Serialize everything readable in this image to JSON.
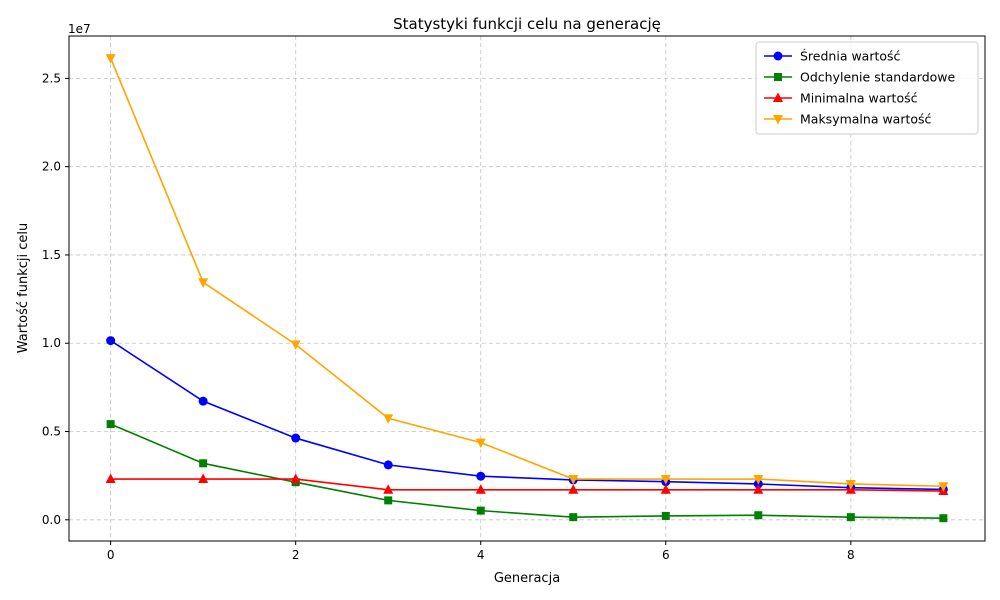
{
  "chart_data": {
    "type": "line",
    "title": "Statystyki funkcji celu na generację",
    "xlabel": "Generacja",
    "ylabel": "Wartość funkcji celu",
    "y_offset_label": "1e7",
    "x": [
      0,
      1,
      2,
      3,
      4,
      5,
      6,
      7,
      8,
      9
    ],
    "xlim": [
      -0.45,
      9.45
    ],
    "ylim": [
      -1200000,
      27400000
    ],
    "x_ticks": [
      0,
      2,
      4,
      6,
      8
    ],
    "x_tick_labels": [
      "0",
      "2",
      "4",
      "6",
      "8"
    ],
    "y_ticks": [
      0,
      5000000,
      10000000,
      15000000,
      20000000,
      25000000
    ],
    "y_tick_labels": [
      "0.0",
      "0.5",
      "1.0",
      "1.5",
      "2.0",
      "2.5"
    ],
    "grid": true,
    "legend_position": "top-right",
    "series": [
      {
        "name": "Średnia wartość",
        "color": "#0000ff",
        "marker": "circle",
        "values": [
          10150000,
          6720000,
          4630000,
          3110000,
          2470000,
          2260000,
          2160000,
          2030000,
          1820000,
          1720000
        ]
      },
      {
        "name": "Odchylenie standardowe",
        "color": "#008000",
        "marker": "square",
        "values": [
          5420000,
          3200000,
          2130000,
          1100000,
          520000,
          150000,
          220000,
          260000,
          150000,
          90000
        ]
      },
      {
        "name": "Minimalna wartość",
        "color": "#ff0000",
        "marker": "triangle-up",
        "values": [
          2310000,
          2310000,
          2310000,
          1700000,
          1700000,
          1700000,
          1700000,
          1700000,
          1700000,
          1630000
        ]
      },
      {
        "name": "Maksymalna wartość",
        "color": "#ffa500",
        "marker": "triangle-down",
        "values": [
          26150000,
          13450000,
          9930000,
          5750000,
          4370000,
          2310000,
          2310000,
          2310000,
          2030000,
          1900000
        ]
      }
    ]
  }
}
